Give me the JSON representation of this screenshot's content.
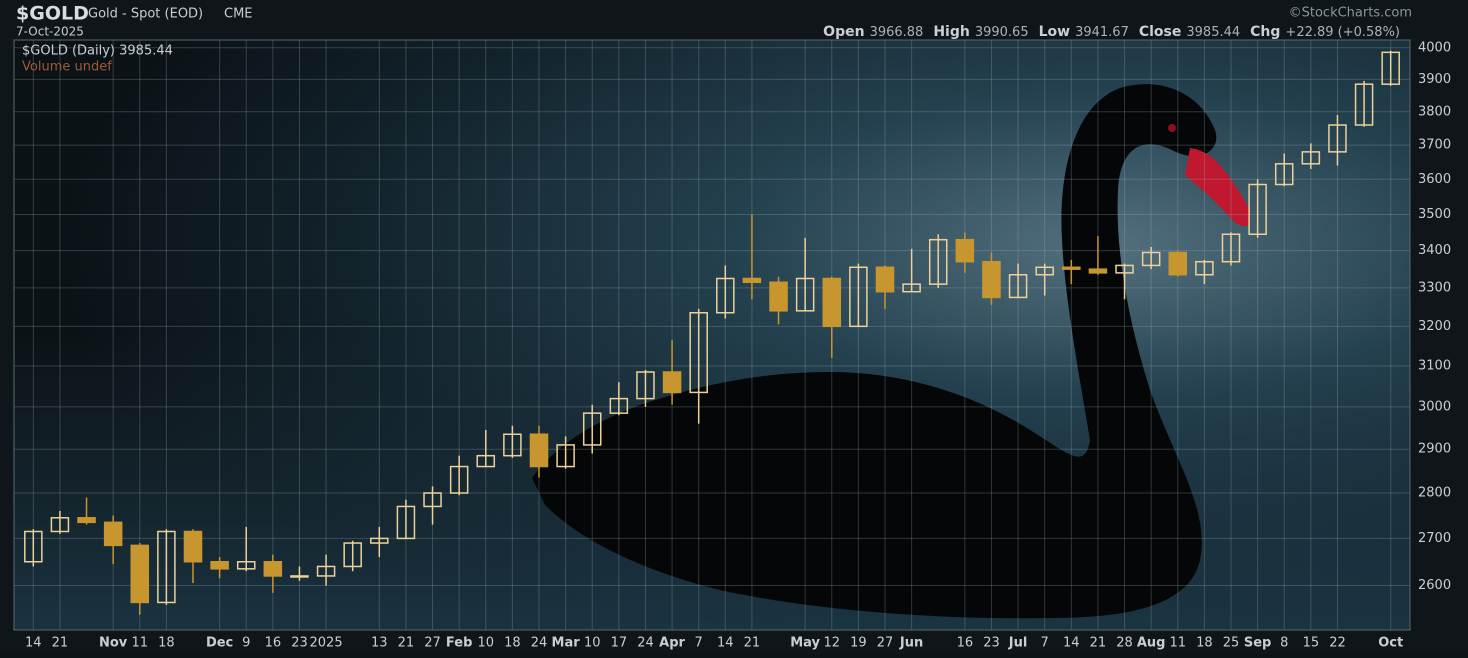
{
  "chart_data": {
    "type": "candlestick",
    "title": "$GOLD",
    "subtitle": "Gold - Spot (EOD)",
    "exchange": "CME",
    "date": "7-Oct-2025",
    "credit": "©StockCharts.com",
    "summary": [
      {
        "label": "Open",
        "value": "3966.88"
      },
      {
        "label": "High",
        "value": "3990.65"
      },
      {
        "label": "Low",
        "value": "3941.67"
      },
      {
        "label": "Close",
        "value": "3985.44"
      },
      {
        "label": "Chg",
        "value": "+22.89 (+0.58%)"
      }
    ],
    "legend_price": "$GOLD (Daily) 3985.44",
    "legend_volume": "Volume undef",
    "categories": [
      "14",
      "21",
      null,
      "Nov",
      "11",
      "18",
      null,
      "Dec",
      "9",
      "16",
      "23",
      "2025",
      null,
      "13",
      "21",
      "27",
      "Feb",
      "10",
      "18",
      "24",
      "Mar",
      "10",
      "17",
      "24",
      "Apr",
      "7",
      "14",
      "21",
      null,
      "May",
      "12",
      "19",
      "27",
      "Jun",
      null,
      "16",
      "23",
      "Jul",
      "7",
      "14",
      "21",
      "28",
      "Aug",
      "11",
      "18",
      "25",
      "Sep",
      "8",
      "15",
      "22",
      null,
      "Oct"
    ],
    "open": [
      2650,
      2715,
      2745,
      2735,
      2685,
      2565,
      2715,
      2650,
      2635,
      2650,
      2620,
      2620,
      2640,
      2690,
      2700,
      2770,
      2800,
      2860,
      2885,
      2935,
      2860,
      2910,
      2985,
      3020,
      3085,
      3035,
      3235,
      3325,
      3315,
      3240,
      3325,
      3200,
      3355,
      3290,
      3310,
      3430,
      3370,
      3275,
      3335,
      3355,
      3350,
      3340,
      3360,
      3395,
      3335,
      3370,
      3445,
      3585,
      3645,
      3680,
      3760,
      3885
    ],
    "high": [
      2720,
      2760,
      2790,
      2750,
      2690,
      2720,
      2720,
      2660,
      2725,
      2665,
      2640,
      2665,
      2695,
      2725,
      2785,
      2815,
      2885,
      2945,
      2955,
      2955,
      2930,
      3005,
      3060,
      3090,
      3165,
      3245,
      3360,
      3500,
      3330,
      3435,
      3330,
      3365,
      3360,
      3405,
      3445,
      3450,
      3395,
      3365,
      3365,
      3375,
      3440,
      3365,
      3410,
      3400,
      3375,
      3450,
      3600,
      3675,
      3705,
      3790,
      3895,
      3990.65
    ],
    "low": [
      2640,
      2710,
      2730,
      2645,
      2540,
      2560,
      2605,
      2615,
      2630,
      2585,
      2610,
      2600,
      2630,
      2660,
      2700,
      2730,
      2795,
      2860,
      2880,
      2835,
      2855,
      2890,
      2980,
      3000,
      3005,
      2960,
      3220,
      3270,
      3205,
      3240,
      3120,
      3200,
      3245,
      3290,
      3300,
      3340,
      3255,
      3275,
      3280,
      3310,
      3335,
      3270,
      3350,
      3330,
      3310,
      3360,
      3435,
      3580,
      3630,
      3640,
      3755,
      3880
    ],
    "close": [
      2715,
      2745,
      2735,
      2685,
      2565,
      2715,
      2650,
      2635,
      2650,
      2620,
      2620,
      2640,
      2690,
      2700,
      2770,
      2800,
      2860,
      2885,
      2935,
      2860,
      2910,
      2985,
      3020,
      3085,
      3035,
      3235,
      3325,
      3315,
      3240,
      3325,
      3200,
      3355,
      3290,
      3310,
      3430,
      3370,
      3275,
      3335,
      3355,
      3350,
      3340,
      3360,
      3395,
      3335,
      3370,
      3445,
      3585,
      3645,
      3680,
      3760,
      3885,
      3985.44
    ],
    "up_color": "#ecd29a",
    "down_color": "#c8962e",
    "ylim": [
      2509,
      4025
    ],
    "yticks": [
      2600,
      2700,
      2800,
      2900,
      3000,
      3100,
      3200,
      3300,
      3400,
      3500,
      3600,
      3700,
      3800,
      3900,
      4000
    ],
    "log_scale": true,
    "grid": true
  }
}
